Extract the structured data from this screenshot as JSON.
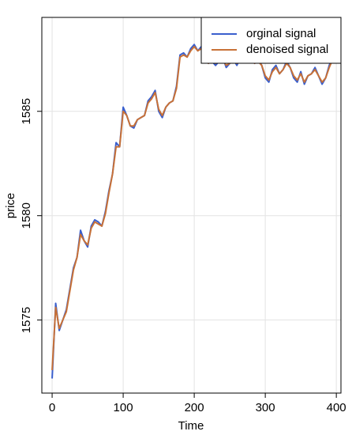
{
  "chart_data": {
    "type": "line",
    "xlabel": "Time",
    "ylabel": "price",
    "x": [
      0,
      5,
      10,
      15,
      20,
      25,
      30,
      35,
      40,
      45,
      50,
      55,
      60,
      65,
      70,
      75,
      80,
      85,
      90,
      95,
      100,
      105,
      110,
      115,
      120,
      125,
      130,
      135,
      140,
      145,
      150,
      155,
      160,
      165,
      170,
      175,
      180,
      185,
      190,
      195,
      200,
      205,
      210,
      215,
      220,
      225,
      230,
      235,
      240,
      245,
      250,
      255,
      260,
      265,
      270,
      275,
      280,
      285,
      290,
      295,
      300,
      305,
      310,
      315,
      320,
      325,
      330,
      335,
      340,
      345,
      350,
      355,
      360,
      365,
      370,
      375,
      380,
      385,
      390,
      395
    ],
    "series": [
      {
        "name": "orginal signal",
        "color": "#3a5fcd",
        "values": [
          1572.2,
          1575.8,
          1574.5,
          1575,
          1575.5,
          1576.5,
          1577.5,
          1578,
          1579.3,
          1578.8,
          1578.5,
          1579.5,
          1579.8,
          1579.7,
          1579.5,
          1580.2,
          1581.2,
          1582,
          1583.5,
          1583.3,
          1585.2,
          1584.8,
          1584.3,
          1584.2,
          1584.6,
          1584.7,
          1584.8,
          1585.5,
          1585.7,
          1586,
          1585,
          1584.7,
          1585.2,
          1585.4,
          1585.5,
          1586.2,
          1587.7,
          1587.8,
          1587.6,
          1588,
          1588.2,
          1587.9,
          1588.1,
          1587.5,
          1587.3,
          1587.4,
          1587.2,
          1587.4,
          1587.6,
          1587.1,
          1587.3,
          1587.5,
          1587.2,
          1587.6,
          1587.8,
          1587.4,
          1587.6,
          1587.3,
          1587.5,
          1587.2,
          1586.6,
          1586.4,
          1587,
          1587.2,
          1586.8,
          1587,
          1587.4,
          1587.1,
          1586.6,
          1586.4,
          1586.9,
          1586.3,
          1586.7,
          1586.8,
          1587.1,
          1586.7,
          1586.3,
          1586.6,
          1587.2,
          1587.6
        ]
      },
      {
        "name": "denoised signal",
        "color": "#c87137",
        "values": [
          1572.6,
          1575.6,
          1574.6,
          1575,
          1575.4,
          1576.4,
          1577.4,
          1578,
          1579.1,
          1578.8,
          1578.6,
          1579.4,
          1579.7,
          1579.6,
          1579.5,
          1580.1,
          1581.1,
          1582,
          1583.3,
          1583.3,
          1585,
          1584.8,
          1584.3,
          1584.3,
          1584.6,
          1584.7,
          1584.8,
          1585.4,
          1585.6,
          1585.9,
          1585.1,
          1584.8,
          1585.2,
          1585.4,
          1585.5,
          1586.1,
          1587.6,
          1587.7,
          1587.6,
          1587.9,
          1588.1,
          1587.9,
          1588,
          1587.5,
          1587.3,
          1587.4,
          1587.3,
          1587.4,
          1587.5,
          1587.2,
          1587.3,
          1587.4,
          1587.3,
          1587.5,
          1587.7,
          1587.4,
          1587.5,
          1587.3,
          1587.4,
          1587.2,
          1586.7,
          1586.5,
          1586.9,
          1587.1,
          1586.8,
          1587,
          1587.3,
          1587.1,
          1586.7,
          1586.5,
          1586.8,
          1586.4,
          1586.7,
          1586.8,
          1587,
          1586.7,
          1586.4,
          1586.6,
          1587.1,
          1587.5
        ]
      }
    ],
    "xlim": [
      -14.5,
      406.5
    ],
    "xticks": [
      0,
      100,
      200,
      300,
      400
    ],
    "ylim": [
      1571.5,
      1589.5
    ],
    "yticks": [
      1575,
      1580,
      1585
    ],
    "grid": true,
    "legend": "upper right"
  }
}
